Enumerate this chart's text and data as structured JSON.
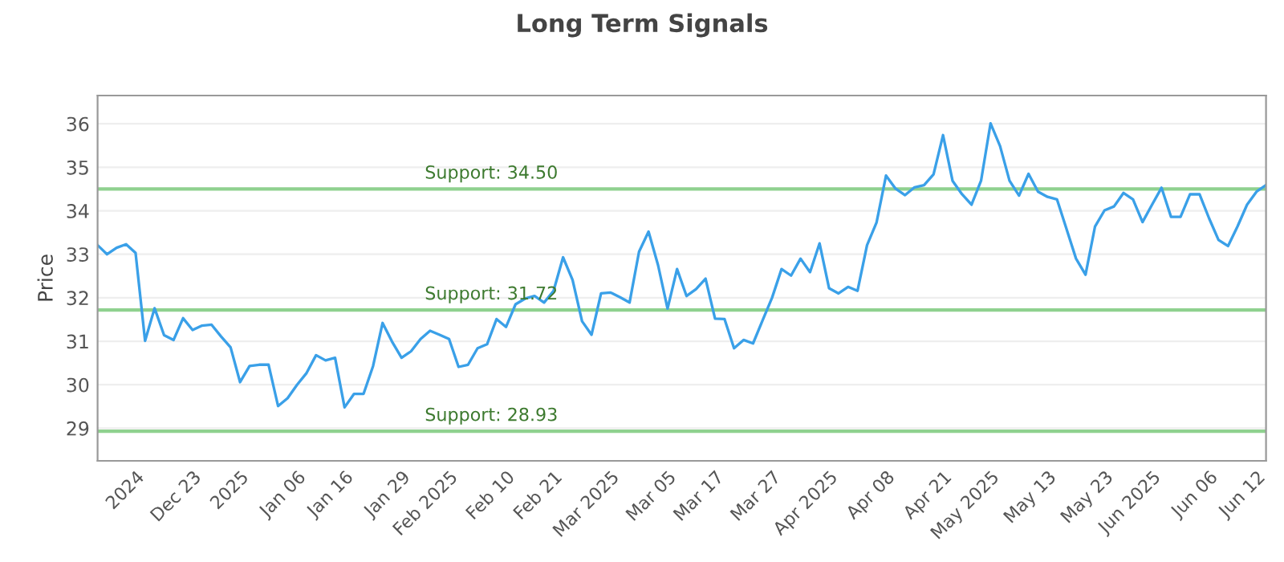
{
  "chart_data": {
    "type": "line",
    "title": "Long Term Signals",
    "ylabel": "Price",
    "categories": [
      null,
      null,
      null,
      null,
      "2024",
      null,
      null,
      null,
      null,
      null,
      "Dec 23",
      null,
      null,
      null,
      null,
      "2025",
      null,
      null,
      null,
      null,
      null,
      "Jan 06",
      null,
      null,
      null,
      null,
      "Jan 16",
      null,
      null,
      null,
      null,
      null,
      "Jan 29",
      null,
      null,
      null,
      null,
      "Feb 2025",
      null,
      null,
      null,
      null,
      null,
      "Feb 10",
      null,
      null,
      null,
      null,
      "Feb 21",
      null,
      null,
      null,
      null,
      null,
      "Mar 2025",
      null,
      null,
      null,
      null,
      null,
      "Mar 05",
      null,
      null,
      null,
      null,
      "Mar 17",
      null,
      null,
      null,
      null,
      null,
      "Mar 27",
      null,
      null,
      null,
      null,
      null,
      "Apr 2025",
      null,
      null,
      null,
      null,
      null,
      "Apr 08",
      null,
      null,
      null,
      null,
      null,
      "Apr 21",
      null,
      null,
      null,
      null,
      "May 2025",
      null,
      null,
      null,
      null,
      null,
      "May 13",
      null,
      null,
      null,
      null,
      null,
      "May 23",
      null,
      null,
      null,
      null,
      "Jun 2025",
      null,
      null,
      null,
      null,
      null,
      "Jun 06",
      null,
      null,
      null,
      null,
      "Jun 12",
      null
    ],
    "series": [
      {
        "color": "#3aa0e8",
        "values": [
          33.21,
          33.0,
          33.15,
          33.23,
          33.03,
          31.01,
          31.76,
          31.14,
          31.03,
          31.53,
          31.26,
          31.36,
          31.38,
          31.11,
          30.86,
          30.06,
          30.43,
          30.46,
          30.46,
          29.51,
          29.69,
          30.0,
          30.27,
          30.68,
          30.56,
          30.62,
          29.48,
          29.79,
          29.79,
          30.43,
          31.42,
          30.99,
          30.62,
          30.77,
          31.05,
          31.24,
          31.15,
          31.05,
          30.41,
          30.46,
          30.84,
          30.93,
          31.51,
          31.33,
          31.85,
          31.98,
          32.04,
          31.89,
          32.16,
          32.93,
          32.41,
          31.46,
          31.15,
          32.1,
          32.12,
          32.01,
          31.89,
          33.06,
          33.52,
          32.75,
          31.75,
          32.66,
          32.04,
          32.2,
          32.44,
          31.52,
          31.51,
          30.84,
          31.03,
          30.95,
          31.48,
          32.0,
          32.66,
          32.51,
          32.9,
          32.59,
          33.25,
          32.22,
          32.1,
          32.25,
          32.16,
          33.21,
          33.73,
          34.81,
          34.51,
          34.36,
          34.54,
          34.59,
          34.84,
          35.74,
          34.69,
          34.38,
          34.14,
          34.69,
          36.01,
          35.49,
          34.69,
          34.35,
          34.85,
          34.44,
          34.32,
          34.26,
          33.58,
          32.9,
          32.53,
          33.64,
          34.01,
          34.1,
          34.41,
          34.26,
          33.74,
          34.14,
          34.53,
          33.86,
          33.86,
          34.38,
          34.38,
          33.83,
          33.33,
          33.19,
          33.64,
          34.14,
          34.44,
          34.59
        ]
      }
    ],
    "ylim": [
      28.25,
      36.65
    ],
    "yticks": [
      29,
      30,
      31,
      32,
      33,
      34,
      35,
      36
    ],
    "grid": "y",
    "ref_lines": [
      {
        "axis": "y",
        "value": 34.5,
        "label": "Support: 34.50",
        "color": "#8fd18f"
      },
      {
        "axis": "y",
        "value": 31.72,
        "label": "Support: 31.72",
        "color": "#8fd18f"
      },
      {
        "axis": "y",
        "value": 28.93,
        "label": "Support: 28.93",
        "color": "#8fd18f"
      }
    ]
  }
}
